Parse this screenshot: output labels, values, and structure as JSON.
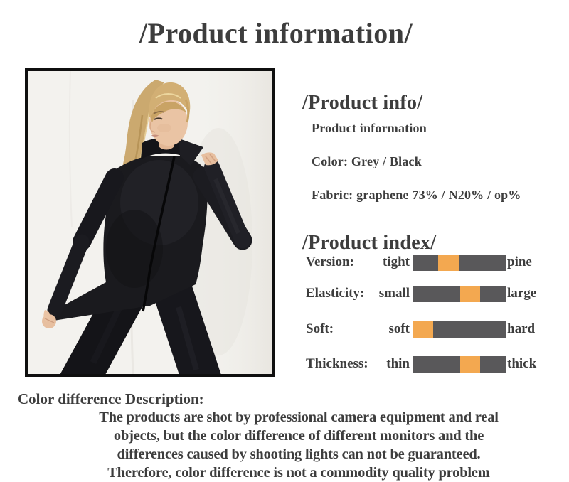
{
  "page": {
    "title": "/Product information/"
  },
  "info": {
    "title": "/Product info/",
    "lines": [
      "Product information",
      "Color: Grey / Black",
      "Fabric: graphene 73% / N20% / op%"
    ]
  },
  "index": {
    "title": "/Product index/",
    "rows": [
      {
        "label": "Version:",
        "min": "tight",
        "max": "pine",
        "orange_start": 0.265,
        "orange_width": 0.22
      },
      {
        "label": "Elasticity:",
        "min": "small",
        "max": "large",
        "orange_start": 0.505,
        "orange_width": 0.215
      },
      {
        "label": "Soft:",
        "min": "soft",
        "max": "hard",
        "orange_start": 0.0,
        "orange_width": 0.21
      },
      {
        "label": "Thickness:",
        "min": "thin",
        "max": "thick",
        "orange_start": 0.505,
        "orange_width": 0.215
      }
    ]
  },
  "description": {
    "heading": "Color difference Description:",
    "lines": [
      "The products are shot by professional camera equipment and real",
      "objects, but the color difference of different monitors and the",
      "differences caused by shooting lights can not be guaranteed.",
      "Therefore, color difference is not a commodity quality problem"
    ]
  },
  "photo": {
    "subject": "woman with blonde ponytail wearing black zip-up sports top and leggings, pulling hem"
  },
  "colors": {
    "bar_dark": "#59585a",
    "bar_orange": "#f3a850",
    "text": "#3d3d3d",
    "photo_border": "#0f0f0f"
  }
}
